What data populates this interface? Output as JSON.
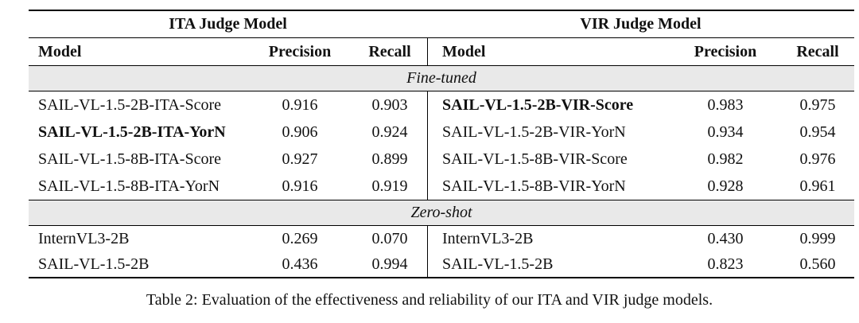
{
  "table": {
    "panels": [
      {
        "title": "ITA Judge Model",
        "headers": {
          "model": "Model",
          "precision": "Precision",
          "recall": "Recall"
        }
      },
      {
        "title": "VIR Judge Model",
        "headers": {
          "model": "Model",
          "precision": "Precision",
          "recall": "Recall"
        }
      }
    ],
    "sections": [
      {
        "label": "Fine-tuned",
        "rows": [
          {
            "left": {
              "model": "SAIL-VL-1.5-2B-ITA-Score",
              "precision": "0.916",
              "recall": "0.903",
              "bold": false
            },
            "right": {
              "model": "SAIL-VL-1.5-2B-VIR-Score",
              "precision": "0.983",
              "recall": "0.975",
              "bold": true
            }
          },
          {
            "left": {
              "model": "SAIL-VL-1.5-2B-ITA-YorN",
              "precision": "0.906",
              "recall": "0.924",
              "bold": true
            },
            "right": {
              "model": "SAIL-VL-1.5-2B-VIR-YorN",
              "precision": "0.934",
              "recall": "0.954",
              "bold": false
            }
          },
          {
            "left": {
              "model": "SAIL-VL-1.5-8B-ITA-Score",
              "precision": "0.927",
              "recall": "0.899",
              "bold": false
            },
            "right": {
              "model": "SAIL-VL-1.5-8B-VIR-Score",
              "precision": "0.982",
              "recall": "0.976",
              "bold": false
            }
          },
          {
            "left": {
              "model": "SAIL-VL-1.5-8B-ITA-YorN",
              "precision": "0.916",
              "recall": "0.919",
              "bold": false
            },
            "right": {
              "model": "SAIL-VL-1.5-8B-VIR-YorN",
              "precision": "0.928",
              "recall": "0.961",
              "bold": false
            }
          }
        ]
      },
      {
        "label": "Zero-shot",
        "rows": [
          {
            "left": {
              "model": "InternVL3-2B",
              "precision": "0.269",
              "recall": "0.070",
              "bold": false
            },
            "right": {
              "model": "InternVL3-2B",
              "precision": "0.430",
              "recall": "0.999",
              "bold": false
            }
          },
          {
            "left": {
              "model": "SAIL-VL-1.5-2B",
              "precision": "0.436",
              "recall": "0.994",
              "bold": false
            },
            "right": {
              "model": "SAIL-VL-1.5-2B",
              "precision": "0.823",
              "recall": "0.560",
              "bold": false
            }
          }
        ]
      }
    ]
  },
  "caption": "Table 2: Evaluation of the effectiveness and reliability of our ITA and VIR judge models.",
  "colors": {
    "band_bg": "#e9e9e9",
    "text": "#111111",
    "rule": "#000000"
  }
}
